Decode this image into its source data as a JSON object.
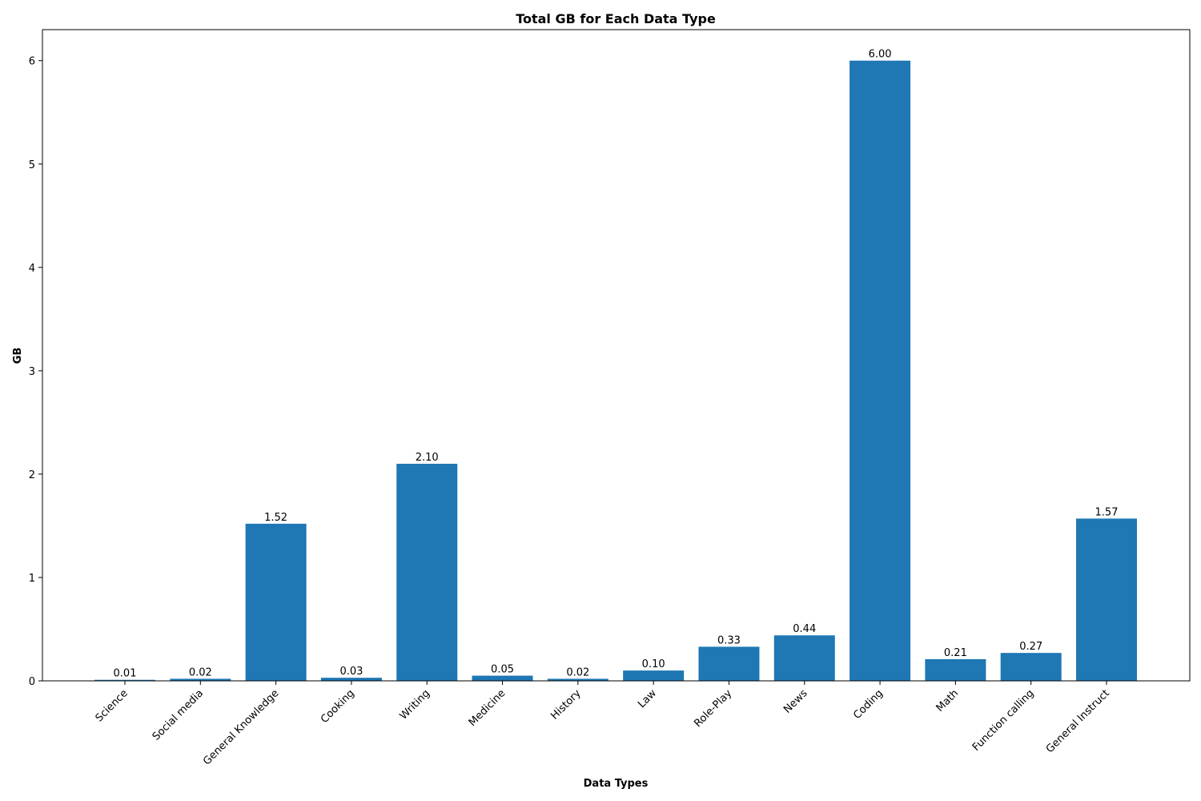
{
  "chart_data": {
    "type": "bar",
    "title": "Total GB for Each Data Type",
    "xlabel": "Data Types",
    "ylabel": "GB",
    "categories": [
      "Science",
      "Social media",
      "General Knowledge",
      "Cooking",
      "Writing",
      "Medicine",
      "History",
      "Law",
      "Role-Play",
      "News",
      "Coding",
      "Math",
      "Function calling",
      "General Instruct"
    ],
    "values": [
      0.01,
      0.02,
      1.52,
      0.03,
      2.1,
      0.05,
      0.02,
      0.1,
      0.33,
      0.44,
      6.0,
      0.21,
      0.27,
      1.57
    ],
    "value_labels": [
      "0.01",
      "0.02",
      "1.52",
      "0.03",
      "2.10",
      "0.05",
      "0.02",
      "0.10",
      "0.33",
      "0.44",
      "6.00",
      "0.21",
      "0.27",
      "1.57"
    ],
    "ylim": [
      0,
      6.3
    ],
    "yticks": [
      0,
      1,
      2,
      3,
      4,
      5,
      6
    ],
    "grid": false,
    "bar_color": "#1f77b4"
  }
}
